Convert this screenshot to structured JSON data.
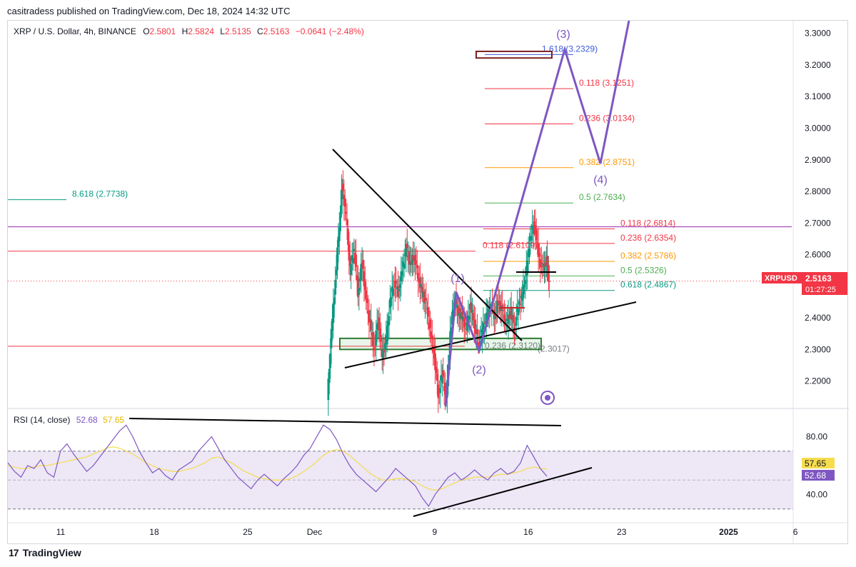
{
  "header": {
    "published": "casitradess published on TradingView.com, Dec 18, 2024 14:32 UTC"
  },
  "legend": {
    "symbol": "XRP / U.S. Dollar, 4h, BINANCE",
    "o_label": "O",
    "o": "2.5801",
    "h_label": "H",
    "h": "2.5824",
    "l_label": "L",
    "l": "2.5135",
    "c_label": "C",
    "c": "2.5163",
    "change": "−0.0641 (−2.48%)"
  },
  "rsi_legend": {
    "label": "RSI (14, close)",
    "rsi": "52.68",
    "ma": "57.65"
  },
  "price_badge": {
    "symbol": "XRPUSD",
    "price": "2.5163",
    "countdown": "01:27:25"
  },
  "rsi_badges": {
    "ma": "57.65",
    "rsi": "52.68"
  },
  "footer": {
    "brand": "TradingView",
    "logo": "17"
  },
  "colors": {
    "up": "#089981",
    "down": "#f23645",
    "wave": "#7e57c2",
    "fib_red": "#f23645",
    "fib_orange": "#ff9800",
    "fib_green": "#4caf50",
    "rsi": "#7e57c2",
    "rsi_ma": "#f7dc4e",
    "rsi_band": "#ede7f6"
  },
  "chart_data": {
    "type": "candlestick",
    "title": "XRP / U.S. Dollar, 4h, BINANCE",
    "price_axis": {
      "ylim": [
        2.12,
        3.34
      ],
      "ticks": [
        "3.3000",
        "3.2000",
        "3.1000",
        "3.0000",
        "2.9000",
        "2.8000",
        "2.7000",
        "2.6000",
        "2.5000",
        "2.4000",
        "2.3000",
        "2.2000"
      ]
    },
    "time_axis": {
      "ticks": [
        {
          "label": "11",
          "day": 11
        },
        {
          "label": "18",
          "day": 18
        },
        {
          "label": "25",
          "day": 25
        },
        {
          "label": "Dec",
          "day": 30
        },
        {
          "label": "9",
          "day": 39
        },
        {
          "label": "16",
          "day": 46
        },
        {
          "label": "23",
          "day": 53
        },
        {
          "label": "2025",
          "day": 61
        },
        {
          "label": "6",
          "day": 66
        }
      ]
    },
    "price_path": [
      [
        31.0,
        2.14
      ],
      [
        31.3,
        2.35
      ],
      [
        31.6,
        2.52
      ],
      [
        31.9,
        2.7
      ],
      [
        32.1,
        2.82
      ],
      [
        32.4,
        2.72
      ],
      [
        32.7,
        2.55
      ],
      [
        33.0,
        2.62
      ],
      [
        33.3,
        2.48
      ],
      [
        33.6,
        2.58
      ],
      [
        33.9,
        2.45
      ],
      [
        34.2,
        2.38
      ],
      [
        34.5,
        2.3
      ],
      [
        34.8,
        2.4
      ],
      [
        35.1,
        2.28
      ],
      [
        35.4,
        2.33
      ],
      [
        35.7,
        2.45
      ],
      [
        36.0,
        2.52
      ],
      [
        36.3,
        2.48
      ],
      [
        36.6,
        2.55
      ],
      [
        36.9,
        2.62
      ],
      [
        37.2,
        2.57
      ],
      [
        37.5,
        2.6
      ],
      [
        37.8,
        2.53
      ],
      [
        38.1,
        2.48
      ],
      [
        38.4,
        2.44
      ],
      [
        38.7,
        2.36
      ],
      [
        39.0,
        2.28
      ],
      [
        39.3,
        2.16
      ],
      [
        39.6,
        2.22
      ],
      [
        39.9,
        2.14
      ],
      [
        40.2,
        2.35
      ],
      [
        40.5,
        2.46
      ],
      [
        40.8,
        2.42
      ],
      [
        41.1,
        2.4
      ],
      [
        41.4,
        2.36
      ],
      [
        41.7,
        2.44
      ],
      [
        42.0,
        2.38
      ],
      [
        42.3,
        2.32
      ],
      [
        42.6,
        2.36
      ],
      [
        42.9,
        2.4
      ],
      [
        43.2,
        2.44
      ],
      [
        43.5,
        2.41
      ],
      [
        43.8,
        2.45
      ],
      [
        44.1,
        2.42
      ],
      [
        44.4,
        2.38
      ],
      [
        44.7,
        2.42
      ],
      [
        45.0,
        2.37
      ],
      [
        45.3,
        2.44
      ],
      [
        45.6,
        2.47
      ],
      [
        45.9,
        2.55
      ],
      [
        46.2,
        2.66
      ],
      [
        46.5,
        2.7
      ],
      [
        46.8,
        2.6
      ],
      [
        47.1,
        2.55
      ],
      [
        47.4,
        2.58
      ],
      [
        47.6,
        2.5163
      ]
    ],
    "annotations": {
      "fib_left": [
        {
          "label": "8.618 (2.7738)",
          "price": 2.7738
        }
      ],
      "fib_upper": [
        {
          "label": "1.618 (3.2329)",
          "price": 3.2329
        },
        {
          "label": "0.118 (3.1251)",
          "price": 3.1251
        },
        {
          "label": "0.236 (3.0134)",
          "price": 3.0134
        },
        {
          "label": "0.382 (2.8751)",
          "price": 2.8751
        },
        {
          "label": "0.5 (2.7634)",
          "price": 2.7634
        }
      ],
      "fib_lower": [
        {
          "label": "0.118 (2.6814)",
          "price": 2.6814
        },
        {
          "label": "0.236 (2.6354)",
          "price": 2.6354
        },
        {
          "label": "0.382 (2.5786)",
          "price": 2.5786
        },
        {
          "label": "0.5 (2.5326)",
          "price": 2.5326
        },
        {
          "label": "0.618 (2.4867)",
          "price": 2.4867
        }
      ],
      "fib_mid": [
        {
          "label": "0.118 (2.6109)",
          "price": 2.6109
        }
      ],
      "fib_bottom": [
        {
          "label": "0.236 (2.3120)",
          "price": 2.312
        },
        {
          "label": "(2.3017)",
          "price": 2.3017
        }
      ],
      "wave_labels": [
        "(1)",
        "(2)",
        "(3)",
        "(4)"
      ]
    },
    "rsi": {
      "label": "RSI (14, close)",
      "ylim": [
        22,
        98
      ],
      "ticks": [
        "80.00",
        "40.00"
      ],
      "band": [
        30,
        70
      ],
      "values": [
        62,
        56,
        52,
        60,
        58,
        64,
        55,
        52,
        70,
        75,
        68,
        62,
        56,
        60,
        66,
        72,
        78,
        84,
        88,
        80,
        70,
        62,
        55,
        58,
        53,
        50,
        57,
        60,
        63,
        70,
        75,
        80,
        72,
        64,
        58,
        52,
        48,
        44,
        50,
        54,
        50,
        46,
        51,
        55,
        60,
        67,
        72,
        80,
        88,
        85,
        78,
        68,
        60,
        54,
        50,
        46,
        42,
        47,
        52,
        58,
        54,
        50,
        46,
        38,
        32,
        40,
        46,
        52,
        55,
        50,
        53,
        57,
        53,
        50,
        55,
        58,
        54,
        56,
        62,
        74,
        66,
        58,
        52.68
      ],
      "ma_values": [
        60,
        59,
        58,
        58,
        59,
        60,
        60,
        61,
        62,
        63,
        64,
        65,
        66,
        68,
        70,
        72,
        73,
        72,
        70,
        68,
        65,
        62,
        60,
        58,
        57,
        56,
        56,
        57,
        58,
        60,
        62,
        65,
        66,
        64,
        62,
        59,
        56,
        54,
        52,
        51,
        50,
        50,
        50,
        51,
        53,
        56,
        59,
        63,
        67,
        70,
        71,
        70,
        67,
        63,
        59,
        55,
        52,
        50,
        50,
        51,
        51,
        50,
        49,
        46,
        44,
        43,
        44,
        46,
        48,
        50,
        51,
        52,
        52,
        52,
        53,
        54,
        54,
        55,
        56,
        58,
        59,
        58,
        57.65
      ]
    }
  }
}
